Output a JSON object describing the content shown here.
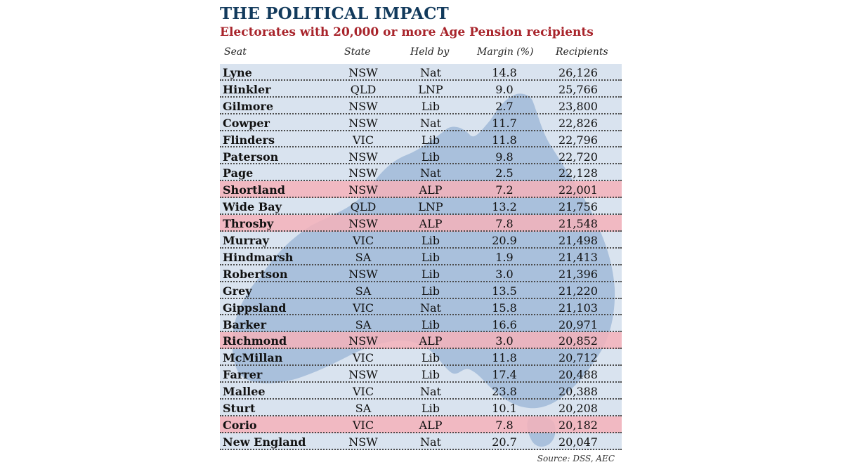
{
  "title": "THE POLITICAL IMPACT",
  "subtitle": "Electorates with 20,000 or more Age Pension recipients",
  "columns": {
    "seat": "Seat",
    "state": "State",
    "held_by": "Held by",
    "margin": "Margin (%)",
    "recipients": "Recipients"
  },
  "rows": [
    {
      "seat": "Lyne",
      "state": "NSW",
      "held_by": "Nat",
      "margin": "14.8",
      "recipients": "26,126"
    },
    {
      "seat": "Hinkler",
      "state": "QLD",
      "held_by": "LNP",
      "margin": "9.0",
      "recipients": "25,766"
    },
    {
      "seat": "Gilmore",
      "state": "NSW",
      "held_by": "Lib",
      "margin": "2.7",
      "recipients": "23,800"
    },
    {
      "seat": "Cowper",
      "state": "NSW",
      "held_by": "Nat",
      "margin": "11.7",
      "recipients": "22,826"
    },
    {
      "seat": "Flinders",
      "state": "VIC",
      "held_by": "Lib",
      "margin": "11.8",
      "recipients": "22,796"
    },
    {
      "seat": "Paterson",
      "state": "NSW",
      "held_by": "Lib",
      "margin": "9.8",
      "recipients": "22,720"
    },
    {
      "seat": "Page",
      "state": "NSW",
      "held_by": "Nat",
      "margin": "2.5",
      "recipients": "22,128"
    },
    {
      "seat": "Shortland",
      "state": "NSW",
      "held_by": "ALP",
      "margin": "7.2",
      "recipients": "22,001"
    },
    {
      "seat": "Wide Bay",
      "state": "QLD",
      "held_by": "LNP",
      "margin": "13.2",
      "recipients": "21,756"
    },
    {
      "seat": "Throsby",
      "state": "NSW",
      "held_by": "ALP",
      "margin": "7.8",
      "recipients": "21,548"
    },
    {
      "seat": "Murray",
      "state": "VIC",
      "held_by": "Lib",
      "margin": "20.9",
      "recipients": "21,498"
    },
    {
      "seat": "Hindmarsh",
      "state": "SA",
      "held_by": "Lib",
      "margin": "1.9",
      "recipients": "21,413"
    },
    {
      "seat": "Robertson",
      "state": "NSW",
      "held_by": "Lib",
      "margin": "3.0",
      "recipients": "21,396"
    },
    {
      "seat": "Grey",
      "state": "SA",
      "held_by": "Lib",
      "margin": "13.5",
      "recipients": "21,220"
    },
    {
      "seat": "Gippsland",
      "state": "VIC",
      "held_by": "Nat",
      "margin": "15.8",
      "recipients": "21,103"
    },
    {
      "seat": "Barker",
      "state": "SA",
      "held_by": "Lib",
      "margin": "16.6",
      "recipients": "20,971"
    },
    {
      "seat": "Richmond",
      "state": "NSW",
      "held_by": "ALP",
      "margin": "3.0",
      "recipients": "20,852"
    },
    {
      "seat": "McMillan",
      "state": "VIC",
      "held_by": "Lib",
      "margin": "11.8",
      "recipients": "20,712"
    },
    {
      "seat": "Farrer",
      "state": "NSW",
      "held_by": "Lib",
      "margin": "17.4",
      "recipients": "20,488"
    },
    {
      "seat": "Mallee",
      "state": "VIC",
      "held_by": "Nat",
      "margin": "23.8",
      "recipients": "20,388"
    },
    {
      "seat": "Sturt",
      "state": "SA",
      "held_by": "Lib",
      "margin": "10.1",
      "recipients": "20,208"
    },
    {
      "seat": "Corio",
      "state": "VIC",
      "held_by": "ALP",
      "margin": "7.8",
      "recipients": "20,182"
    },
    {
      "seat": "New England",
      "state": "NSW",
      "held_by": "Nat",
      "margin": "20.7",
      "recipients": "20,047"
    }
  ],
  "source": "Source: DSS, AEC",
  "colors": {
    "title": "#123a5c",
    "subtitle": "#a8242b",
    "table_background": "#d9e3ef",
    "map": "#a9c0dc",
    "alp_highlight": "#f4b2ba"
  },
  "highlight_party": "ALP"
}
